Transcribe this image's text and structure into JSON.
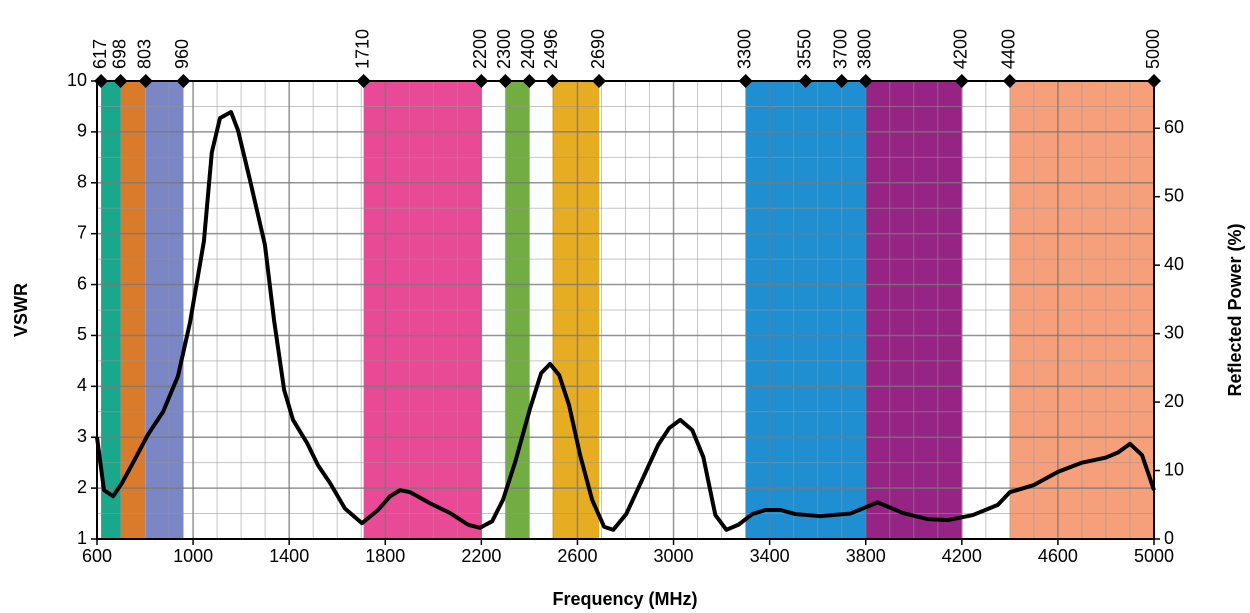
{
  "chart_data": {
    "type": "line",
    "xlabel": "Frequency (MHz)",
    "ylabel": "VSWR",
    "y2label": "Reflected Power (%)",
    "xlim": [
      600,
      5000
    ],
    "xticks": [
      600,
      1000,
      1400,
      1800,
      2200,
      2600,
      3000,
      3400,
      3800,
      4200,
      4600,
      5000
    ],
    "ylim": [
      1,
      10
    ],
    "yticks": [
      1,
      2,
      3,
      4,
      5,
      6,
      7,
      8,
      9,
      10
    ],
    "y2lim": [
      0,
      66.9
    ],
    "y2ticks": [
      0,
      10,
      20,
      30,
      40,
      50,
      60
    ],
    "grid": true,
    "top_ticks": [
      617,
      698,
      803,
      960,
      1710,
      2200,
      2300,
      2400,
      2496,
      2690,
      3300,
      3550,
      3700,
      3800,
      4200,
      4400,
      5000
    ],
    "bands": [
      {
        "start": 617,
        "end": 698,
        "color": "#1aa88c"
      },
      {
        "start": 698,
        "end": 803,
        "color": "#d97b2b"
      },
      {
        "start": 803,
        "end": 960,
        "color": "#7b86c4"
      },
      {
        "start": 1710,
        "end": 2200,
        "color": "#e84a96"
      },
      {
        "start": 2300,
        "end": 2400,
        "color": "#72ad44"
      },
      {
        "start": 2496,
        "end": 2690,
        "color": "#e6ad22"
      },
      {
        "start": 3300,
        "end": 3800,
        "color": "#1f8fd1"
      },
      {
        "start": 3800,
        "end": 4200,
        "color": "#952484"
      },
      {
        "start": 4400,
        "end": 5000,
        "color": "#f6a07b"
      }
    ],
    "series": [
      {
        "color": "#000000",
        "x": [
          600,
          629,
          667,
          704,
          750,
          812,
          875,
          937,
          987,
          1045,
          1078,
          1112,
          1158,
          1187,
          1237,
          1299,
          1337,
          1379,
          1416,
          1474,
          1520,
          1570,
          1632,
          1703,
          1770,
          1820,
          1862,
          1903,
          1987,
          2070,
          2145,
          2195,
          2245,
          2290,
          2340,
          2403,
          2449,
          2486,
          2524,
          2565,
          2611,
          2661,
          2711,
          2749,
          2803,
          2869,
          2936,
          2982,
          3028,
          3078,
          3124,
          3174,
          3220,
          3270,
          3328,
          3382,
          3445,
          3507,
          3611,
          3736,
          3850,
          3955,
          4059,
          4142,
          4246,
          4350,
          4400,
          4500,
          4600,
          4700,
          4800,
          4850,
          4900,
          4950,
          5000
        ],
        "values": [
          3.0,
          1.96,
          1.84,
          2.1,
          2.5,
          3.05,
          3.5,
          4.2,
          5.25,
          6.85,
          8.6,
          9.27,
          9.39,
          9.03,
          8.05,
          6.78,
          5.3,
          3.93,
          3.34,
          2.89,
          2.45,
          2.1,
          1.6,
          1.31,
          1.57,
          1.84,
          1.96,
          1.92,
          1.7,
          1.51,
          1.28,
          1.22,
          1.35,
          1.77,
          2.5,
          3.57,
          4.26,
          4.44,
          4.22,
          3.63,
          2.65,
          1.77,
          1.24,
          1.18,
          1.49,
          2.16,
          2.85,
          3.18,
          3.34,
          3.14,
          2.61,
          1.47,
          1.18,
          1.28,
          1.49,
          1.57,
          1.57,
          1.49,
          1.45,
          1.5,
          1.72,
          1.51,
          1.39,
          1.37,
          1.47,
          1.67,
          1.92,
          2.06,
          2.32,
          2.5,
          2.6,
          2.7,
          2.87,
          2.65,
          1.96
        ]
      }
    ]
  }
}
